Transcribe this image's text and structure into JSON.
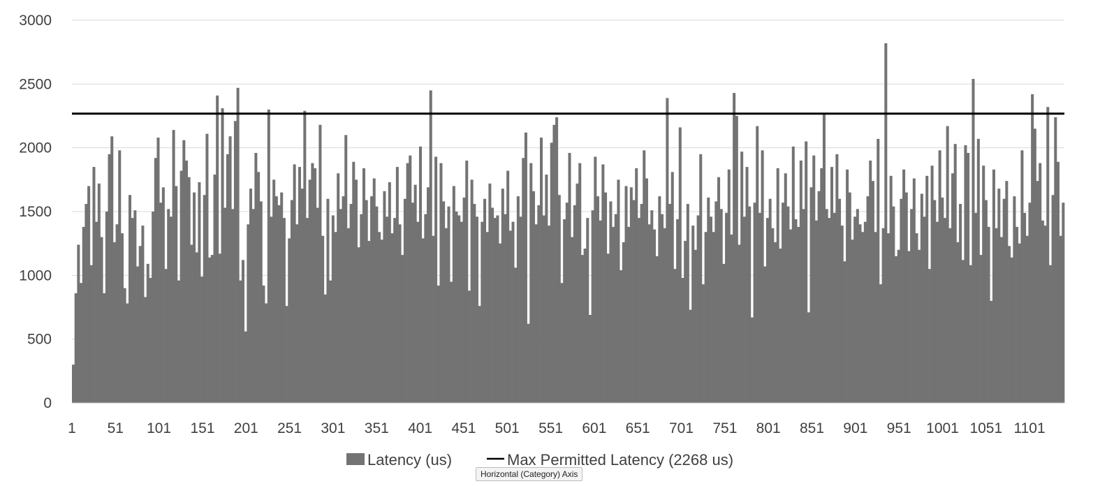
{
  "chart_data": {
    "type": "bar",
    "title": "",
    "xlabel": "",
    "ylabel": "",
    "ylim": [
      0,
      3000
    ],
    "y_ticks": [
      0,
      500,
      1000,
      1500,
      2000,
      2500,
      3000
    ],
    "x_tick_labels": [
      "1",
      "51",
      "101",
      "151",
      "201",
      "251",
      "301",
      "351",
      "401",
      "451",
      "501",
      "551",
      "601",
      "651",
      "701",
      "751",
      "801",
      "851",
      "901",
      "951",
      "1001",
      "1051",
      "1101"
    ],
    "x_count": 1140,
    "grid": true,
    "legend_position": "bottom",
    "series": [
      {
        "name": "Latency (us)",
        "color": "#737373",
        "sample_values": [
          300,
          860,
          1240,
          940,
          1380,
          1560,
          1700,
          1080,
          1850,
          1420,
          1720,
          1300,
          860,
          1500,
          1950,
          2090,
          1260,
          1400,
          1980,
          1330,
          900,
          780,
          1630,
          1450,
          1510,
          1070,
          1230,
          1390,
          830,
          1090,
          980,
          1500,
          1920,
          2080,
          1570,
          1690,
          1050,
          1520,
          1460,
          2140,
          1700,
          960,
          1820,
          2060,
          1900,
          1770,
          1240,
          1650,
          1180,
          1730,
          990,
          1630,
          2110,
          1140,
          1160,
          1790,
          2410,
          1170,
          2310,
          1530,
          1950,
          2090,
          1520,
          2210,
          2470,
          960,
          1120,
          560,
          1400,
          1680,
          1520,
          1960,
          1810,
          1580,
          920,
          780,
          2300,
          1460,
          1750,
          1620,
          1550,
          1650,
          1450,
          760,
          1290,
          1590,
          1870,
          1400,
          1850,
          1680,
          2290,
          1450,
          1750,
          1880,
          1840,
          1530,
          2180,
          1310,
          850,
          1600,
          960,
          1470,
          1340,
          1800,
          1520,
          1620,
          2100,
          1370,
          1560,
          1890,
          1750,
          1220,
          1480,
          1840,
          1590,
          1270,
          1620,
          1760,
          1540,
          1340,
          1280,
          1660,
          1460,
          1730,
          1330,
          1450,
          1850,
          1400,
          1160,
          1600,
          1880,
          1940,
          1570,
          1710,
          1420,
          2010,
          1290,
          1480,
          1690,
          2450,
          1310,
          1930,
          920,
          1880,
          1580,
          1370,
          1540,
          950,
          1700,
          1500,
          1470,
          1420,
          1610,
          1900,
          880,
          1750,
          1560,
          1460,
          760,
          1420,
          1600,
          1340,
          1720,
          1530,
          1450,
          1470,
          1250,
          1680,
          1480,
          1820,
          1350,
          1420,
          1060,
          1620,
          1460,
          1920,
          2120,
          620,
          1880,
          1660,
          1400,
          1550,
          2080,
          1470,
          1790,
          1390,
          2040,
          2180,
          2240,
          1630,
          940,
          1440,
          1570,
          1960,
          1300,
          1550,
          1720,
          1880,
          1160,
          1210,
          1450,
          690,
          1510,
          1930,
          1620,
          1430,
          1870,
          1650,
          1170,
          1580,
          1380,
          1480,
          1750,
          1040,
          1260,
          1700,
          1380,
          1690,
          1590,
          1840,
          1450,
          1560,
          1980,
          1760,
          1400,
          1510,
          1360,
          1150,
          1620,
          1480,
          1370,
          2390,
          1560,
          1810,
          1050,
          1440,
          2160,
          980,
          1270,
          1560,
          730,
          1390,
          1200,
          1470,
          1950,
          930,
          1340,
          1610,
          1460,
          1340,
          1580,
          1770,
          1520,
          1090,
          1490,
          1830,
          1320,
          2430,
          2250,
          1240,
          1970,
          1460,
          1850,
          1540,
          670,
          1570,
          2170,
          1490,
          1980,
          1070,
          1450,
          1600,
          1370,
          1260,
          1840,
          1210,
          1570,
          1800,
          1540,
          1360,
          2010,
          1440,
          1380,
          1900,
          1520,
          2050,
          710,
          1690,
          1940,
          1430,
          1660,
          1840,
          2260,
          1520,
          1450,
          1850,
          1490,
          1950,
          1600,
          1390,
          1110,
          1830,
          1650,
          1280,
          1460,
          1520,
          1400,
          1340,
          1420,
          1620,
          1900,
          1740,
          1340,
          2070,
          930,
          1370,
          2820,
          1330,
          1780,
          1540,
          1150,
          1200,
          1600,
          1830,
          1650,
          1190,
          1520,
          1760,
          1330,
          1200,
          1640,
          1460,
          1780,
          1050,
          1860,
          1590,
          1420,
          1980,
          1610,
          1450,
          2170,
          1370,
          1800,
          2030,
          1260,
          1560,
          1120,
          2020,
          1960,
          1080,
          2540,
          1490,
          2070,
          1160,
          1860,
          1590,
          1380,
          800,
          1830,
          1370,
          1680,
          1300,
          1600,
          1740,
          1230,
          1140,
          1620,
          1380,
          1250,
          1980,
          1490,
          1310,
          1570,
          2420,
          2150,
          1740,
          1880,
          1430,
          1390,
          2320,
          1080,
          1630,
          2240,
          1890,
          1310,
          1570
        ]
      },
      {
        "name": "Max Permitted Latency (2268 us)",
        "color": "#000000",
        "constant_value": 2268
      }
    ]
  },
  "legend": {
    "bar_label": "Latency (us)",
    "line_label": "Max Permitted Latency (2268 us)"
  },
  "tooltip": {
    "text": "Horizontal (Category) Axis"
  }
}
